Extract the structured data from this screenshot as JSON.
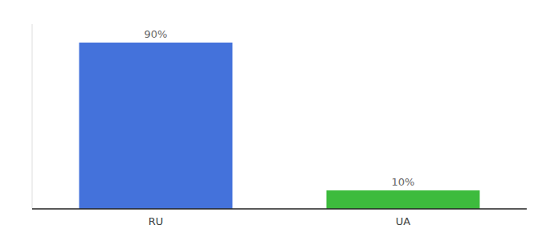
{
  "chart_data": {
    "type": "bar",
    "categories": [
      "RU",
      "UA"
    ],
    "values": [
      90,
      10
    ],
    "value_labels": [
      "90%",
      "10%"
    ],
    "colors": [
      "#4472db",
      "#3dbb3d"
    ],
    "ylim": [
      0,
      100
    ],
    "data_labels": true,
    "tick_labels": "x"
  }
}
